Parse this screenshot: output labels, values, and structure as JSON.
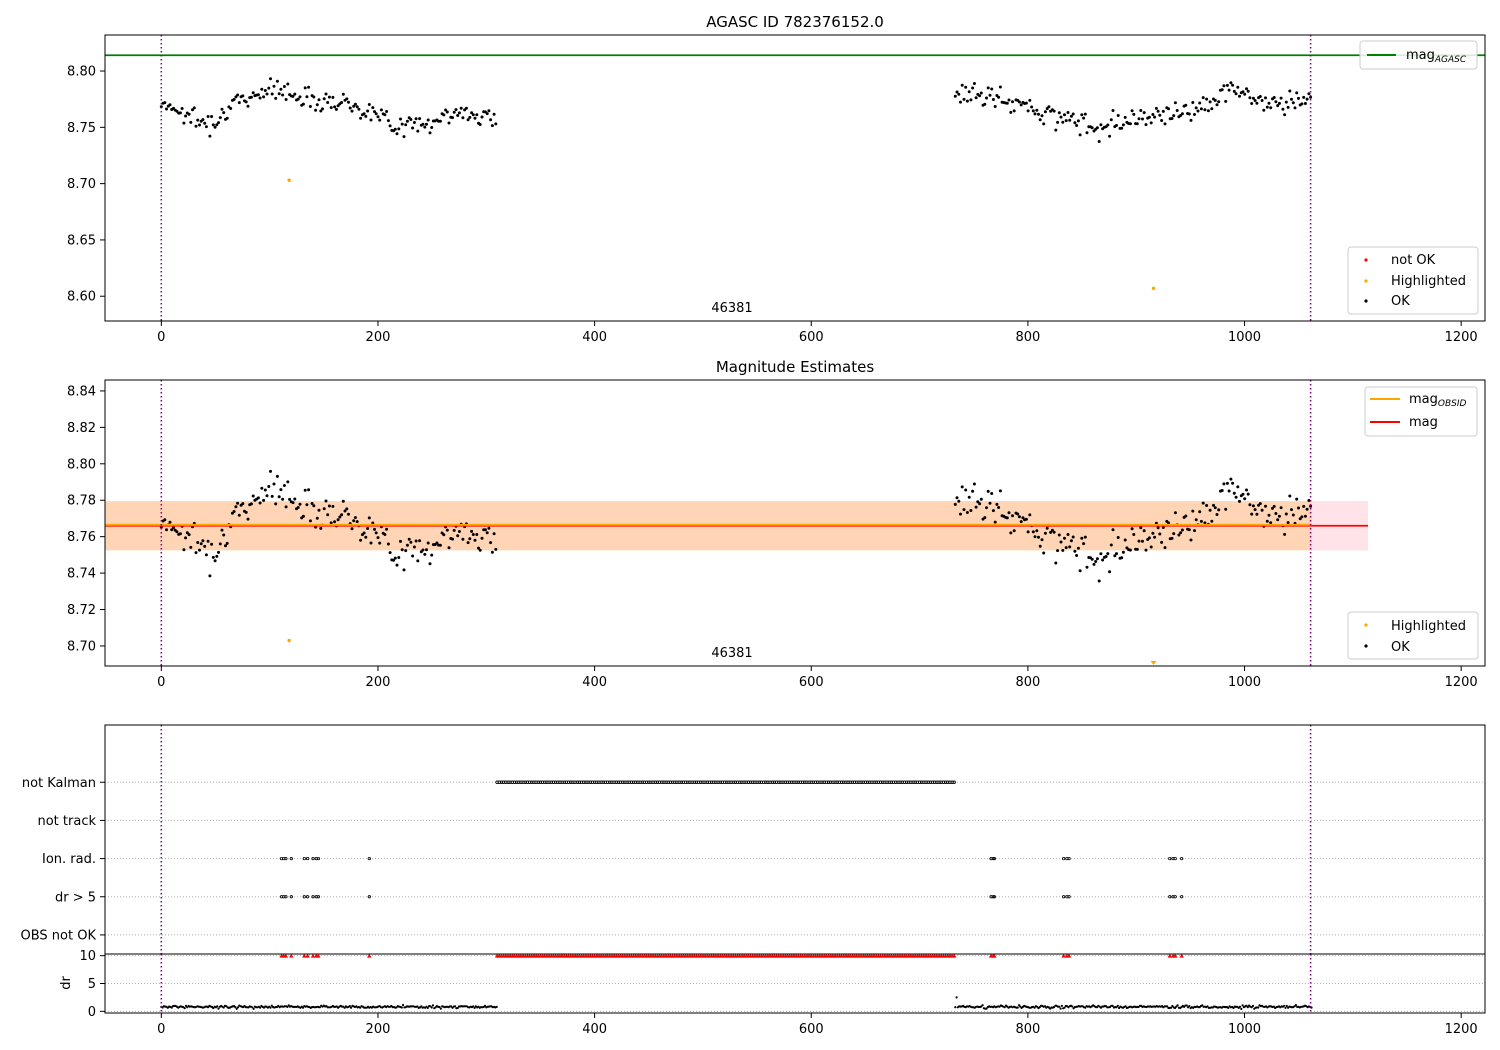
{
  "chart_data": [
    {
      "type": "scatter",
      "title": "AGASC ID 782376152.0",
      "xlabel": "",
      "ylabel": "",
      "xlim": [
        -52,
        1222
      ],
      "ylim": [
        8.578,
        8.832
      ],
      "x_ticks": [
        0,
        200,
        400,
        600,
        800,
        1000,
        1200
      ],
      "y_ticks": [
        8.6,
        8.65,
        8.7,
        8.75,
        8.8
      ],
      "y_tick_labels": [
        "8.60",
        "8.65",
        "8.70",
        "8.75",
        "8.80"
      ],
      "grid": false,
      "obsid_label": "46381",
      "obsid_label_x": 530,
      "vlines": [
        0,
        1061
      ],
      "reference_lines": [
        {
          "name": "mag",
          "name_sub": "AGASC",
          "value": 8.814,
          "color": "#008000"
        }
      ],
      "segments": [
        [
          0,
          310
        ],
        [
          733,
          1062
        ]
      ],
      "series": [
        {
          "name": "not OK",
          "color": "#ff0000",
          "points": []
        },
        {
          "name": "Highlighted",
          "color": "#ffa500",
          "points": [
            [
              118,
              8.703
            ],
            [
              916,
              8.607
            ]
          ]
        },
        {
          "name": "OK",
          "color": "#000000",
          "mean": 8.765,
          "scatter": 0.012,
          "wave": [
            [
              0,
              8.773
            ],
            [
              40,
              8.753
            ],
            [
              95,
              8.785
            ],
            [
              140,
              8.776
            ],
            [
              175,
              8.771
            ],
            [
              225,
              8.75
            ],
            [
              280,
              8.763
            ],
            [
              310,
              8.758
            ],
            [
              733,
              8.779
            ],
            [
              760,
              8.778
            ],
            [
              800,
              8.768
            ],
            [
              860,
              8.75
            ],
            [
              905,
              8.76
            ],
            [
              950,
              8.765
            ],
            [
              990,
              8.784
            ],
            [
              1030,
              8.768
            ],
            [
              1062,
              8.778
            ]
          ]
        }
      ],
      "legend": [
        {
          "label": "mag",
          "label_sub": "AGASC",
          "kind": "line",
          "color": "#008000",
          "loc": "upper right"
        },
        {
          "label": "not OK",
          "kind": "marker",
          "color": "#ff0000",
          "loc": "lower right"
        },
        {
          "label": "Highlighted",
          "kind": "marker",
          "color": "#ffa500",
          "loc": "lower right"
        },
        {
          "label": "OK",
          "kind": "marker",
          "color": "#000000",
          "loc": "lower right"
        }
      ]
    },
    {
      "type": "scatter",
      "title": "Magnitude Estimates",
      "xlabel": "",
      "ylabel": "",
      "xlim": [
        -52,
        1222
      ],
      "ylim": [
        8.689,
        8.846
      ],
      "x_ticks": [
        0,
        200,
        400,
        600,
        800,
        1000,
        1200
      ],
      "y_ticks": [
        8.7,
        8.72,
        8.74,
        8.76,
        8.78,
        8.8,
        8.82,
        8.84
      ],
      "y_tick_labels": [
        "8.70",
        "8.72",
        "8.74",
        "8.76",
        "8.78",
        "8.80",
        "8.82",
        "8.84"
      ],
      "grid": false,
      "obsid_label": "46381",
      "obsid_label_x": 530,
      "vlines": [
        0,
        1061
      ],
      "segments": [
        [
          0,
          310
        ],
        [
          733,
          1062
        ]
      ],
      "bands": [
        {
          "x": [
            -52,
            1114
          ],
          "y": [
            8.7525,
            8.7795
          ],
          "color": "#ffc0cb",
          "opacity": 0.45
        },
        {
          "x": [
            -52,
            1062
          ],
          "y": [
            8.7525,
            8.7795
          ],
          "color": "#ffa500",
          "opacity": 0.22
        }
      ],
      "reference_lines": [
        {
          "name": "mag",
          "value": 8.766,
          "color": "#ff0000",
          "x": [
            -52,
            1114
          ]
        },
        {
          "name": "mag",
          "name_sub": "OBSID",
          "value": 8.7665,
          "color": "#ffa500",
          "x": [
            -52,
            1062
          ]
        }
      ],
      "offscale_markers": [
        {
          "x": 916,
          "color": "#ffa500"
        }
      ],
      "series": [
        {
          "name": "Highlighted",
          "color": "#ffa500",
          "points": [
            [
              118,
              8.703
            ]
          ]
        },
        {
          "name": "OK",
          "color": "#000000",
          "mean": 8.765,
          "scatter": 0.012,
          "wave": [
            [
              0,
              8.77
            ],
            [
              45,
              8.752
            ],
            [
              95,
              8.788
            ],
            [
              140,
              8.776
            ],
            [
              175,
              8.771
            ],
            [
              225,
              8.75
            ],
            [
              280,
              8.763
            ],
            [
              310,
              8.758
            ],
            [
              733,
              8.779
            ],
            [
              760,
              8.778
            ],
            [
              800,
              8.766
            ],
            [
              860,
              8.748
            ],
            [
              905,
              8.76
            ],
            [
              950,
              8.767
            ],
            [
              990,
              8.786
            ],
            [
              1030,
              8.768
            ],
            [
              1062,
              8.778
            ]
          ]
        }
      ],
      "legend": [
        {
          "label": "mag",
          "label_sub": "OBSID",
          "kind": "line",
          "color": "#ffa500",
          "loc": "upper right"
        },
        {
          "label": "mag",
          "kind": "line",
          "color": "#ff0000",
          "loc": "upper right"
        },
        {
          "label": "Highlighted",
          "kind": "marker",
          "color": "#ffa500",
          "loc": "lower right"
        },
        {
          "label": "OK",
          "kind": "marker",
          "color": "#000000",
          "loc": "lower right"
        }
      ]
    },
    {
      "type": "scatter",
      "title": "",
      "xlabel": "",
      "ylabel": "",
      "xlim": [
        -52,
        1222
      ],
      "ylim": [
        -0.5,
        5.5
      ],
      "grid": "horizontal dotted",
      "vlines": [
        0,
        1061
      ],
      "y_ticks": [
        0,
        1,
        2,
        3,
        4
      ],
      "y_tick_labels": [
        "OBS not OK",
        "dr > 5",
        "Ion. rad.",
        "not track",
        "not Kalman"
      ],
      "series": [
        {
          "name": "not Kalman",
          "y": 4,
          "range": [
            310,
            732
          ],
          "step": 2,
          "points": []
        },
        {
          "name": "not track",
          "y": 3,
          "points": []
        },
        {
          "name": "Ion. rad.",
          "y": 2,
          "points": [
            111,
            113,
            115,
            120,
            132,
            135,
            140,
            143,
            145,
            192,
            766,
            768,
            769,
            833,
            836,
            838,
            931,
            934,
            936,
            942
          ]
        },
        {
          "name": "dr > 5",
          "y": 1,
          "points": [
            111,
            113,
            115,
            120,
            132,
            135,
            140,
            143,
            145,
            192,
            766,
            768,
            769,
            833,
            836,
            838,
            931,
            934,
            936,
            942
          ]
        },
        {
          "name": "OBS not OK",
          "y": 0,
          "points": []
        }
      ]
    },
    {
      "type": "scatter",
      "title": "",
      "xlabel": "",
      "ylabel": "dr",
      "xlim": [
        -52,
        1222
      ],
      "ylim": [
        -0.3,
        10.3
      ],
      "x_ticks": [
        0,
        200,
        400,
        600,
        800,
        1000,
        1200
      ],
      "y_ticks": [
        0,
        5,
        10
      ],
      "y_tick_labels": [
        "0",
        "5",
        "10"
      ],
      "grid": "horizontal dotted",
      "vlines": [
        0,
        1061
      ],
      "segments": [
        [
          0,
          310
        ],
        [
          733,
          1062
        ]
      ],
      "series": [
        {
          "name": "dr",
          "color": "#000000",
          "mean": 0.8,
          "scatter": 0.35
        },
        {
          "name": "dr > 10",
          "color": "#ff0000",
          "marker": "triangle-up",
          "y": 10,
          "range": [
            310,
            732
          ],
          "step": 2,
          "points": [
            111,
            113,
            115,
            120,
            132,
            135,
            140,
            143,
            145,
            192,
            766,
            768,
            769,
            833,
            836,
            838,
            931,
            934,
            936,
            942
          ]
        }
      ]
    }
  ]
}
